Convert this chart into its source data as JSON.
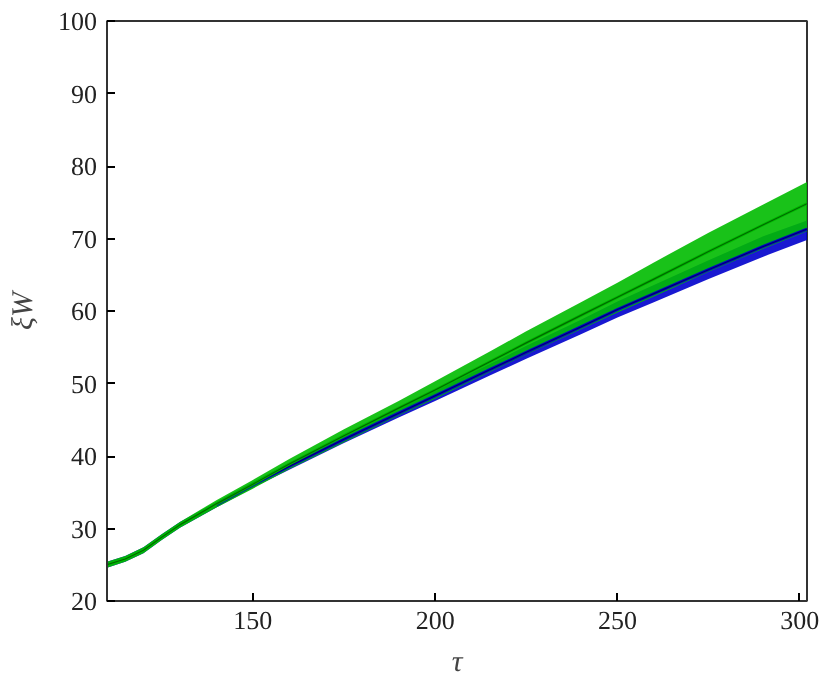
{
  "chart_data": {
    "type": "line",
    "xlabel": "τ",
    "ylabel": "ξW",
    "x": [
      110,
      115,
      120,
      125,
      130,
      140,
      150,
      160,
      175,
      190,
      200,
      215,
      225,
      240,
      250,
      260,
      275,
      290,
      302
    ],
    "series": [
      {
        "color": "#0000cc",
        "values": [
          null,
          null,
          null,
          null,
          null,
          33.3,
          36,
          38.6,
          42.3,
          45.9,
          48.3,
          51.9,
          54.3,
          57.8,
          60.2,
          62.4,
          65.7,
          68.9,
          71.3
        ],
        "lower": [
          24.6,
          25.4,
          26.6,
          28.4,
          30.1,
          32.9,
          35.6,
          38.1,
          41.8,
          45.3,
          47.6,
          51.1,
          53.4,
          56.8,
          59.1,
          61.2,
          64.4,
          67.5,
          69.8
        ],
        "upper": [
          25.4,
          26.2,
          27.4,
          29.2,
          30.9,
          33.7,
          36.4,
          39.1,
          42.8,
          46.5,
          49.0,
          52.7,
          55.2,
          58.8,
          61.3,
          63.6,
          67.0,
          70.3,
          72.5
        ]
      },
      {
        "color": "#00bb00",
        "values": [
          25,
          25.8,
          27,
          28.8,
          30.5,
          33.4,
          36.1,
          38.9,
          42.8,
          46.6,
          49.1,
          53.0,
          55.6,
          59.4,
          61.9,
          64.4,
          68.2,
          71.9,
          74.8
        ],
        "lower": [
          24.6,
          25.4,
          26.6,
          28.4,
          30.1,
          32.9,
          35.5,
          38.2,
          41.9,
          45.6,
          47.9,
          51.6,
          54.0,
          57.5,
          59.8,
          62.0,
          65.4,
          68.6,
          71.0
        ],
        "upper": [
          25.4,
          26.2,
          27.4,
          29.2,
          30.9,
          33.9,
          36.7,
          39.6,
          43.7,
          47.6,
          50.3,
          54.4,
          57.2,
          61.2,
          63.9,
          66.7,
          70.8,
          74.7,
          77.8
        ]
      }
    ],
    "xlim": [
      110,
      302
    ],
    "ylim": [
      20,
      100
    ],
    "xticks": [
      150,
      200,
      250,
      300
    ],
    "yticks": [
      20,
      30,
      40,
      50,
      60,
      70,
      80,
      90,
      100
    ],
    "grid": false,
    "line_style": "solid",
    "marker": "none"
  }
}
